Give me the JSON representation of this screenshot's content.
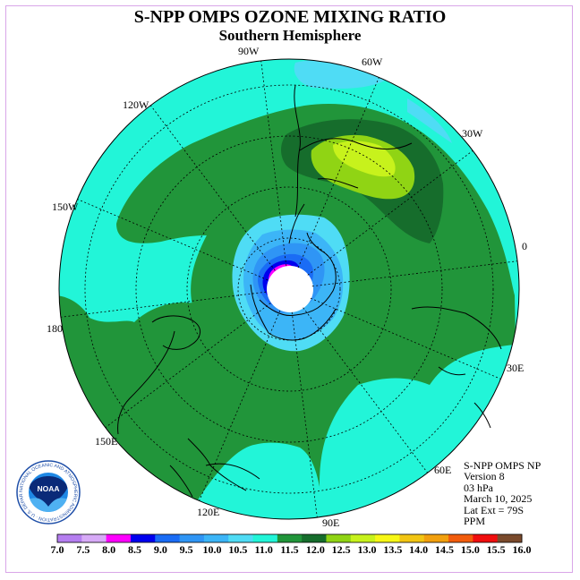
{
  "title": "S-NPP OMPS OZONE MIXING RATIO",
  "subtitle": "Southern Hemisphere",
  "lon_labels": [
    "90W",
    "60W",
    "30W",
    "0",
    "30E",
    "60E",
    "90E",
    "120E",
    "150E",
    "180",
    "150W",
    "120W"
  ],
  "info": {
    "instrument": "S-NPP OMPS NP",
    "version": "Version 8",
    "level": "03 hPa",
    "date": "March 10, 2025",
    "lat_ext": "Lat Ext = 79S",
    "units": "PPM"
  },
  "logo": {
    "text": "NOAA",
    "ring_text": "NATIONAL OCEANIC AND ATMOSPHERIC ADMINISTRATION · U.S. DEPARTMENT OF COMMERCE"
  },
  "colorbar": {
    "labels": [
      "7.0",
      "7.5",
      "8.0",
      "8.5",
      "9.0",
      "9.5",
      "10.0",
      "10.5",
      "11.0",
      "11.5",
      "12.0",
      "12.5",
      "13.0",
      "13.5",
      "14.0",
      "14.5",
      "15.0",
      "15.5",
      "16.0"
    ],
    "colors": [
      "#b57ef0",
      "#d7aaf7",
      "#ff00ff",
      "#0000ee",
      "#1a6cf5",
      "#2f95f5",
      "#3cb5f7",
      "#4fdcf5",
      "#22f5d8",
      "#21953a",
      "#166d2c",
      "#90d414",
      "#c7f21c",
      "#f7f716",
      "#f2c513",
      "#f2a00e",
      "#f25c0c",
      "#f00e0e",
      "#7a4a2c"
    ]
  },
  "map_colors": {
    "c10_5": "#4fdcf5",
    "c11_0": "#22f5d8",
    "c11_5": "#21953a",
    "c12_0": "#166d2c",
    "c12_5": "#90d414",
    "c13_0": "#c7f21c",
    "c10_0": "#3cb5f7",
    "c9_5": "#2f95f5",
    "c9_0": "#1a6cf5",
    "c8_5": "#0000ee",
    "c8_0": "#ff00ff"
  }
}
